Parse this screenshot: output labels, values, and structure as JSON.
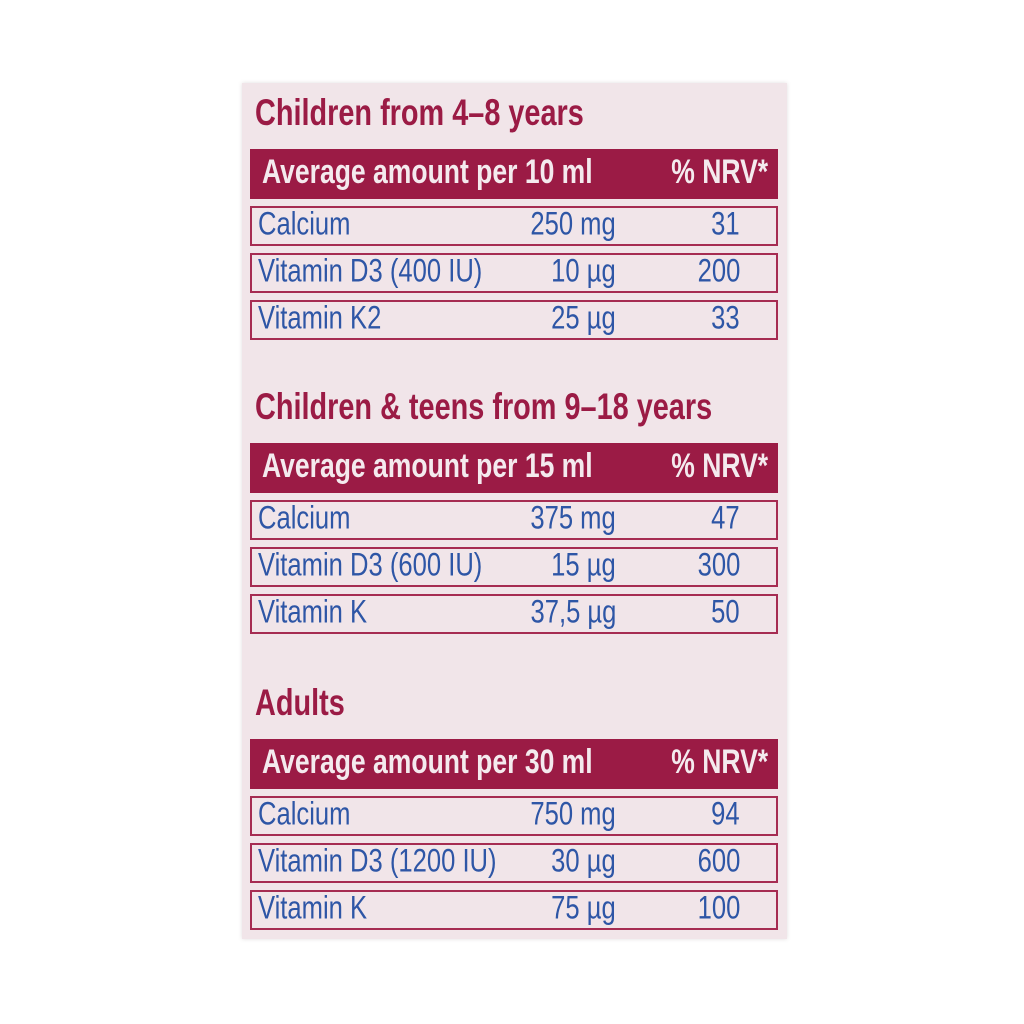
{
  "colors": {
    "page-bg": "#ffffff",
    "panel-bg": "#f1e5e9",
    "accent": "#9b1b45",
    "accent-border": "#a62c52",
    "value-blue": "#2e56a6",
    "header-text": "#f4eaee"
  },
  "label": {
    "sections": [
      {
        "heading": "Children from 4–8 years",
        "columns": {
          "amount_header": "Average amount per 10 ml",
          "nrv_header": "% NRV*"
        },
        "rows": [
          {
            "name": "Calcium",
            "amount": "250 mg",
            "nrv": "31"
          },
          {
            "name": "Vitamin D3 (400 IU)",
            "amount": "10 µg",
            "nrv": "200"
          },
          {
            "name": "Vitamin K2",
            "amount": "25 µg",
            "nrv": "33"
          }
        ]
      },
      {
        "heading": "Children & teens from 9–18 years",
        "columns": {
          "amount_header": "Average amount per 15 ml",
          "nrv_header": "% NRV*"
        },
        "rows": [
          {
            "name": "Calcium",
            "amount": "375 mg",
            "nrv": "47"
          },
          {
            "name": "Vitamin D3 (600 IU)",
            "amount": "15 µg",
            "nrv": "300"
          },
          {
            "name": "Vitamin K",
            "amount": "37,5 µg",
            "nrv": "50"
          }
        ]
      },
      {
        "heading": "Adults",
        "columns": {
          "amount_header": "Average amount per 30 ml",
          "nrv_header": "% NRV*"
        },
        "rows": [
          {
            "name": "Calcium",
            "amount": "750 mg",
            "nrv": "94"
          },
          {
            "name": "Vitamin D3 (1200 IU)",
            "amount": "30 µg",
            "nrv": "600"
          },
          {
            "name": "Vitamin K",
            "amount": "75 µg",
            "nrv": "100"
          }
        ]
      }
    ]
  }
}
